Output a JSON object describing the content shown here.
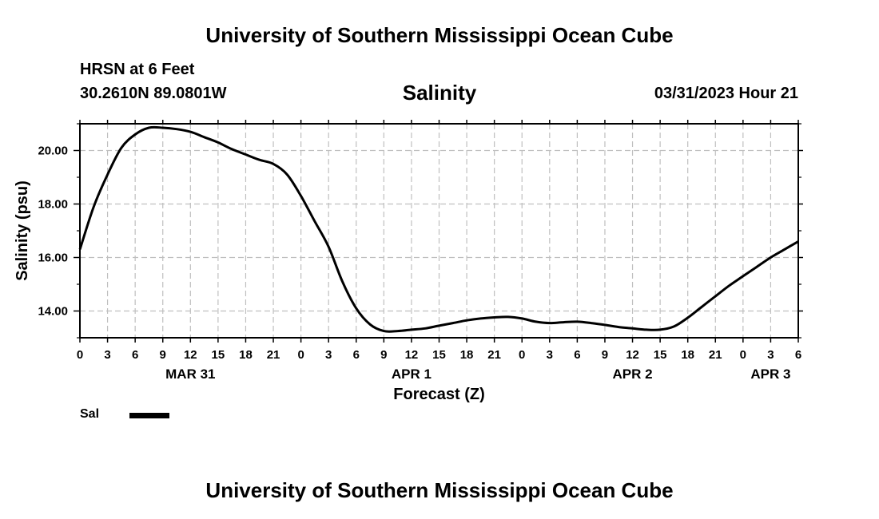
{
  "header": {
    "title": "University of Southern Mississippi Ocean Cube",
    "station": "HRSN at 6 Feet",
    "coords": "30.2610N  89.0801W",
    "datetime": "03/31/2023 Hour 21"
  },
  "footer": {
    "title": "University of Southern Mississippi Ocean Cube"
  },
  "legend": {
    "label": "Sal"
  },
  "chart_data": {
    "type": "line",
    "title": "Salinity",
    "xlabel": "Forecast (Z)",
    "ylabel": "Salinity (psu)",
    "x_unit": "hours from 2023-03-31 00Z",
    "xlim": [
      0,
      78
    ],
    "ylim": [
      13.0,
      21.0
    ],
    "grid": true,
    "x_ticks": [
      0,
      3,
      6,
      9,
      12,
      15,
      18,
      21,
      24,
      27,
      30,
      33,
      36,
      39,
      42,
      45,
      48,
      51,
      54,
      57,
      60,
      63,
      66,
      69,
      72,
      75,
      78
    ],
    "x_tick_labels": [
      "0",
      "3",
      "6",
      "9",
      "12",
      "15",
      "18",
      "21",
      "0",
      "3",
      "6",
      "9",
      "12",
      "15",
      "18",
      "21",
      "0",
      "3",
      "6",
      "9",
      "12",
      "15",
      "18",
      "21",
      "0",
      "3",
      "6"
    ],
    "y_ticks": [
      14.0,
      16.0,
      18.0,
      20.0
    ],
    "y_tick_labels": [
      "14.00",
      "16.00",
      "18.00",
      "20.00"
    ],
    "date_labels": [
      {
        "x": 12,
        "label": "MAR 31"
      },
      {
        "x": 36,
        "label": "APR 1"
      },
      {
        "x": 60,
        "label": "APR 2"
      },
      {
        "x": 75,
        "label": "APR 3"
      }
    ],
    "series": [
      {
        "name": "Sal",
        "color": "#000000",
        "x": [
          0,
          1.5,
          3,
          4.5,
          6,
          7.5,
          9,
          10.5,
          12,
          13.5,
          15,
          16.5,
          18,
          19.5,
          21,
          22.5,
          24,
          25.5,
          27,
          28.5,
          30,
          31.5,
          33,
          34.5,
          36,
          37.5,
          39,
          40.5,
          42,
          43.5,
          45,
          46.5,
          48,
          49.5,
          51,
          52.5,
          54,
          55.5,
          57,
          58.5,
          60,
          61.5,
          63,
          64.5,
          66,
          67.5,
          69,
          70.5,
          72,
          73.5,
          75,
          76.5,
          78
        ],
        "values": [
          16.3,
          17.9,
          19.1,
          20.1,
          20.6,
          20.85,
          20.85,
          20.8,
          20.7,
          20.5,
          20.3,
          20.05,
          19.85,
          19.65,
          19.5,
          19.1,
          18.3,
          17.35,
          16.4,
          15.1,
          14.1,
          13.5,
          13.25,
          13.25,
          13.3,
          13.35,
          13.45,
          13.55,
          13.65,
          13.72,
          13.76,
          13.78,
          13.72,
          13.6,
          13.55,
          13.58,
          13.6,
          13.55,
          13.48,
          13.4,
          13.35,
          13.3,
          13.3,
          13.42,
          13.75,
          14.15,
          14.55,
          14.95,
          15.3,
          15.65,
          16.0,
          16.3,
          16.6
        ]
      }
    ]
  }
}
